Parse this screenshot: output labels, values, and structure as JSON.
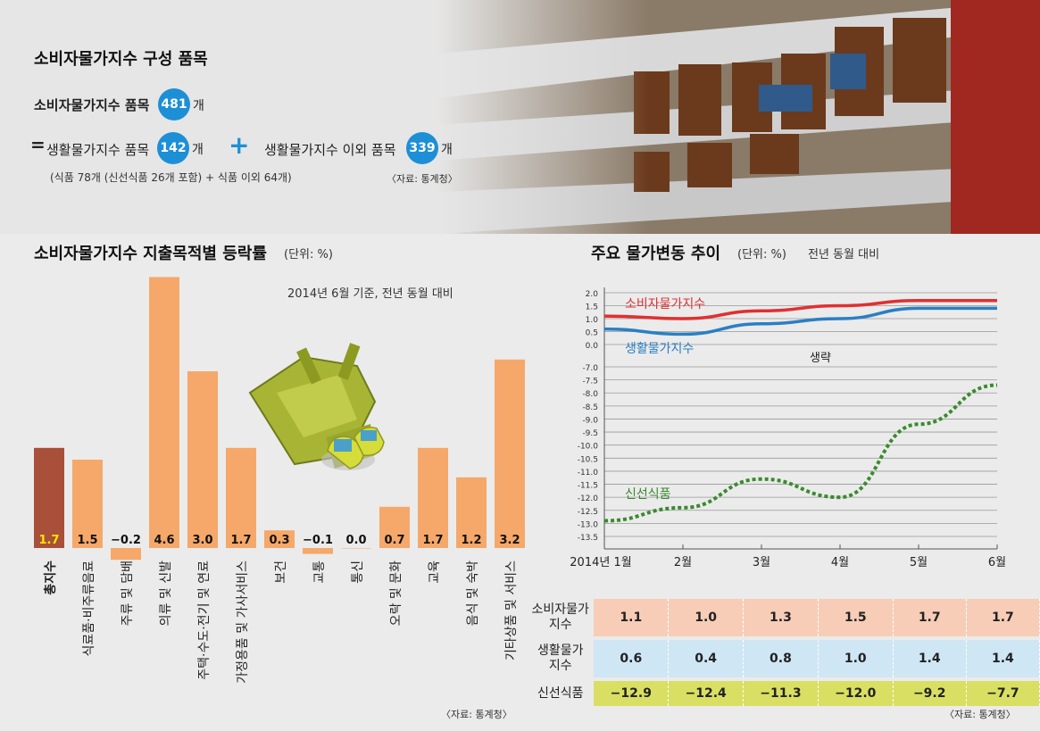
{
  "header": {
    "title": "소비자물가지수 구성 품목",
    "cpi_items_label": "소비자물가지수 품목",
    "cpi_items_count": "481",
    "unit_ea": "개",
    "equals": "=",
    "living_items_label": "생활물가지수 품목",
    "living_items_count": "142",
    "plus": "+",
    "other_items_label": "생활물가지수 이외 품목",
    "other_items_count": "339",
    "breakdown": "(식품 78개 (신선식품 26개 포함) + 식품 이외 64개)",
    "source": "〈자료: 통계청〉",
    "colors": {
      "badge": "#1d8fd6"
    }
  },
  "chart_data": [
    {
      "type": "bar",
      "title": "소비자물가지수 지출목적별 등락률",
      "unit_note": "(단위: %)",
      "subtitle": "2014년 6월 기준, 전년 동월 대비",
      "categories": [
        "총지수",
        "식료품·비주류음료",
        "주류 및 담배",
        "의류 및 신발",
        "주택·수도·전기 및 연료",
        "가정용품 및 가사서비스",
        "보건",
        "교통",
        "통신",
        "오락 및 문화",
        "교육",
        "음식 및 숙박",
        "기타상품 및 서비스"
      ],
      "values": [
        1.7,
        1.5,
        -0.2,
        4.6,
        3.0,
        1.7,
        0.3,
        -0.1,
        0.0,
        0.7,
        1.7,
        1.2,
        3.2
      ],
      "labels": [
        "1.7",
        "1.5",
        "−0.2",
        "4.6",
        "3.0",
        "1.7",
        "0.3",
        "−0.1",
        "0.0",
        "0.7",
        "1.7",
        "1.2",
        "3.2"
      ],
      "colors": {
        "total": "#a9503a",
        "other": "#f5a86a",
        "total_label": "#ffe500"
      },
      "source": "〈자료: 통계청〉"
    },
    {
      "type": "line",
      "title": "주요 물가변동 추이",
      "unit_note": "(단위: %)",
      "subtitle": "전년 동월 대비",
      "x": [
        "2014년 1월",
        "2월",
        "3월",
        "4월",
        "5월",
        "6월"
      ],
      "break_label": "생략",
      "y_ticks_upper": [
        "2.0",
        "1.5",
        "1.0",
        "0.5",
        "0.0"
      ],
      "y_ticks_lower": [
        "-7.0",
        "-7.5",
        "-8.0",
        "-8.5",
        "-9.0",
        "-9.5",
        "-10.0",
        "-10.5",
        "-11.0",
        "-11.5",
        "-12.0",
        "-12.5",
        "-13.0",
        "-13.5"
      ],
      "series": [
        {
          "name": "소비자물가지수",
          "values": [
            1.1,
            1.0,
            1.3,
            1.5,
            1.7,
            1.7
          ],
          "color": "#e03030"
        },
        {
          "name": "생활물가지수",
          "values": [
            0.6,
            0.4,
            0.8,
            1.0,
            1.4,
            1.4
          ],
          "color": "#2a7fc2"
        },
        {
          "name": "신선식품",
          "values": [
            -12.9,
            -12.4,
            -11.3,
            -12.0,
            -9.2,
            -7.7
          ],
          "color": "#3a8a2e"
        }
      ],
      "table": {
        "rows": [
          {
            "label": "소비자물가\n지수",
            "values": [
              "1.1",
              "1.0",
              "1.3",
              "1.5",
              "1.7",
              "1.7"
            ],
            "bg": "#f7cdb8"
          },
          {
            "label": "생활물가\n지수",
            "values": [
              "0.6",
              "0.4",
              "0.8",
              "1.0",
              "1.4",
              "1.4"
            ],
            "bg": "#cfe6f5"
          },
          {
            "label": "신선식품",
            "values": [
              "−12.9",
              "−12.4",
              "−11.3",
              "−12.0",
              "−9.2",
              "−7.7"
            ],
            "bg": "#d9df62"
          }
        ]
      },
      "source": "〈자료: 통계청〉"
    }
  ]
}
